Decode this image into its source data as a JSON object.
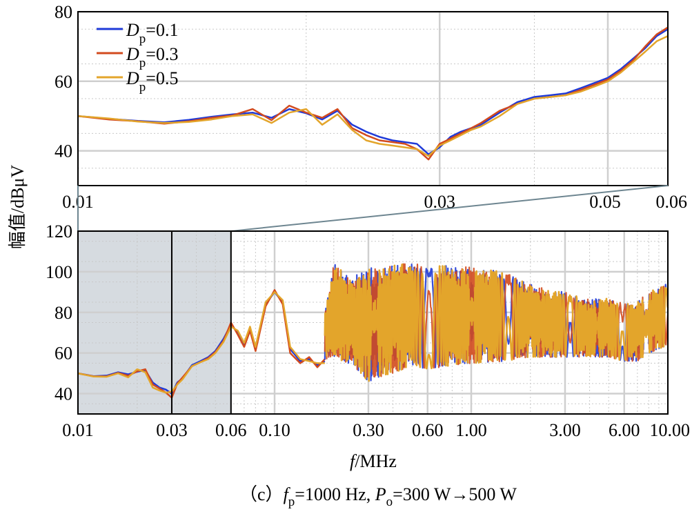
{
  "y_axis_label": "幅值/dBμV",
  "x_axis_label": {
    "italic": "f",
    "rest": "/MHz"
  },
  "caption": {
    "prefix": "（c）",
    "f": "f",
    "f_sub": "p",
    "f_val": "=1000 Hz, ",
    "p": "P",
    "p_sub": "o",
    "p_val": "=300 W",
    "arrow": "→",
    "p_end": "500 W"
  },
  "colors": {
    "Dp=0.1": "#1f3ad8",
    "Dp=0.3": "#d24a1e",
    "Dp=0.5": "#e3a52b",
    "grid": "#cfcfcf",
    "shade": "#d6dbe0",
    "zoom_line": "#6d8590"
  },
  "chart_data": [
    {
      "type": "line",
      "panel": "top-zoom",
      "xscale": "log",
      "xlim": [
        0.01,
        0.06
      ],
      "ylim": [
        30,
        80
      ],
      "xticks": [
        {
          "v": 0.01,
          "label": "0.01"
        },
        {
          "v": 0.03,
          "label": "0.03"
        },
        {
          "v": 0.05,
          "label": "0.05"
        },
        {
          "v": 0.06,
          "label": "0.06"
        }
      ],
      "yticks": [
        {
          "v": 40,
          "label": "40"
        },
        {
          "v": 60,
          "label": "60"
        },
        {
          "v": 80,
          "label": "80"
        }
      ],
      "legend_position": "top-left",
      "legend": [
        {
          "base": "D",
          "sub": "p",
          "value": "=0.1"
        },
        {
          "base": "D",
          "sub": "p",
          "value": "=0.3"
        },
        {
          "base": "D",
          "sub": "p",
          "value": "=0.5"
        }
      ],
      "series": [
        {
          "name": "Dp=0.1",
          "x": [
            0.01,
            0.011,
            0.012,
            0.013,
            0.014,
            0.015,
            0.016,
            0.017,
            0.018,
            0.019,
            0.02,
            0.021,
            0.022,
            0.023,
            0.024,
            0.025,
            0.026,
            0.027,
            0.028,
            0.029,
            0.03,
            0.031,
            0.032,
            0.033,
            0.034,
            0.036,
            0.038,
            0.04,
            0.042,
            0.044,
            0.046,
            0.048,
            0.05,
            0.052,
            0.054,
            0.056,
            0.058,
            0.06
          ],
          "y": [
            50.0,
            49.2,
            48.6,
            48.2,
            48.9,
            49.8,
            50.5,
            51.0,
            49.5,
            52.0,
            50.8,
            49.0,
            51.5,
            47.5,
            45.5,
            44.0,
            43.0,
            42.5,
            42.0,
            39.0,
            41.0,
            44.0,
            45.5,
            46.5,
            47.5,
            51.0,
            54.0,
            55.5,
            56.0,
            56.5,
            58.0,
            59.5,
            61.0,
            63.5,
            66.5,
            69.5,
            73.0,
            75.0
          ]
        },
        {
          "name": "Dp=0.3",
          "x": [
            0.01,
            0.011,
            0.012,
            0.013,
            0.014,
            0.015,
            0.016,
            0.017,
            0.018,
            0.019,
            0.02,
            0.021,
            0.022,
            0.023,
            0.024,
            0.025,
            0.026,
            0.027,
            0.028,
            0.029,
            0.03,
            0.031,
            0.032,
            0.033,
            0.034,
            0.036,
            0.038,
            0.04,
            0.042,
            0.044,
            0.046,
            0.048,
            0.05,
            0.052,
            0.054,
            0.056,
            0.058,
            0.06
          ],
          "y": [
            50.0,
            49.0,
            48.5,
            47.8,
            48.5,
            49.5,
            50.2,
            52.0,
            48.8,
            53.0,
            51.0,
            49.5,
            52.0,
            46.5,
            44.5,
            43.0,
            42.5,
            42.0,
            40.5,
            37.5,
            42.0,
            43.5,
            45.0,
            46.5,
            48.0,
            51.5,
            53.5,
            55.0,
            55.5,
            56.0,
            57.5,
            59.0,
            60.5,
            63.0,
            66.0,
            70.0,
            73.5,
            75.5
          ]
        },
        {
          "name": "Dp=0.5",
          "x": [
            0.01,
            0.011,
            0.012,
            0.013,
            0.014,
            0.015,
            0.016,
            0.017,
            0.018,
            0.019,
            0.02,
            0.021,
            0.022,
            0.023,
            0.024,
            0.025,
            0.026,
            0.027,
            0.028,
            0.029,
            0.03,
            0.031,
            0.032,
            0.033,
            0.034,
            0.036,
            0.038,
            0.04,
            0.042,
            0.044,
            0.046,
            0.048,
            0.05,
            0.052,
            0.054,
            0.056,
            0.058,
            0.06
          ],
          "y": [
            50.0,
            49.3,
            48.4,
            48.0,
            48.3,
            49.0,
            50.0,
            50.5,
            48.0,
            51.0,
            52.0,
            47.5,
            50.5,
            46.0,
            43.0,
            42.0,
            41.5,
            41.0,
            40.5,
            38.5,
            41.5,
            43.0,
            44.5,
            46.0,
            47.0,
            50.0,
            53.5,
            55.0,
            55.5,
            56.0,
            57.0,
            58.5,
            60.0,
            62.5,
            65.5,
            68.5,
            71.5,
            73.0
          ]
        }
      ]
    },
    {
      "type": "line",
      "panel": "bottom-full",
      "xscale": "log",
      "xlim": [
        0.01,
        10.0
      ],
      "ylim": [
        30,
        120
      ],
      "xticks": [
        {
          "v": 0.01,
          "label": "0.01"
        },
        {
          "v": 0.03,
          "label": "0.03"
        },
        {
          "v": 0.06,
          "label": "0.06"
        },
        {
          "v": 0.1,
          "label": "0.10"
        },
        {
          "v": 0.3,
          "label": "0.30"
        },
        {
          "v": 0.6,
          "label": "0.60"
        },
        {
          "v": 1.0,
          "label": "1.00"
        },
        {
          "v": 3.0,
          "label": "3.00"
        },
        {
          "v": 6.0,
          "label": "6.00"
        },
        {
          "v": 10.0,
          "label": "10.00"
        }
      ],
      "yticks": [
        {
          "v": 40,
          "label": "40"
        },
        {
          "v": 60,
          "label": "60"
        },
        {
          "v": 80,
          "label": "80"
        },
        {
          "v": 100,
          "label": "100"
        },
        {
          "v": 120,
          "label": "120"
        }
      ],
      "shaded_range": [
        0.01,
        0.06
      ],
      "marker_lines": [
        0.03,
        0.06
      ],
      "envelope": {
        "x": [
          0.06,
          0.07,
          0.08,
          0.09,
          0.1,
          0.12,
          0.15,
          0.17,
          0.2,
          0.25,
          0.3,
          0.4,
          0.5,
          0.6,
          0.8,
          1.0,
          1.5,
          2.0,
          3.0,
          4.0,
          5.0,
          6.0,
          7.0,
          8.0,
          9.0,
          10.0
        ],
        "upper": [
          76,
          72,
          70,
          88,
          91,
          86,
          70,
          68,
          104,
          98,
          102,
          104,
          105,
          103,
          104,
          103,
          100,
          94,
          90,
          87,
          87,
          85,
          86,
          90,
          93,
          95
        ],
        "lower": [
          70,
          60,
          66,
          58,
          64,
          55,
          49,
          56,
          58,
          54,
          46,
          50,
          54,
          52,
          54,
          55,
          56,
          58,
          58,
          58,
          58,
          56,
          56,
          60,
          62,
          64
        ]
      },
      "series": [
        {
          "name": "Dp=0.1",
          "x": [
            0.01,
            0.012,
            0.014,
            0.016,
            0.018,
            0.02,
            0.022,
            0.024,
            0.026,
            0.028,
            0.03,
            0.032,
            0.034,
            0.038,
            0.042,
            0.046,
            0.05,
            0.055,
            0.06,
            0.065,
            0.07,
            0.075,
            0.08,
            0.09,
            0.1,
            0.11,
            0.12,
            0.135,
            0.15,
            0.165,
            0.18
          ],
          "y": [
            50.0,
            48.6,
            48.9,
            50.5,
            49.5,
            50.8,
            51.5,
            45.5,
            43.0,
            42.0,
            40.0,
            45.5,
            47.5,
            54.0,
            56.0,
            58.0,
            61.0,
            67.0,
            74.0,
            70.0,
            64.0,
            72.0,
            62.0,
            84.0,
            90.0,
            85.0,
            62.0,
            56.0,
            57.0,
            54.0,
            56.0
          ]
        },
        {
          "name": "Dp=0.3",
          "x": [
            0.01,
            0.012,
            0.014,
            0.016,
            0.018,
            0.02,
            0.022,
            0.024,
            0.026,
            0.028,
            0.03,
            0.032,
            0.034,
            0.038,
            0.042,
            0.046,
            0.05,
            0.055,
            0.06,
            0.065,
            0.07,
            0.075,
            0.08,
            0.09,
            0.1,
            0.11,
            0.12,
            0.135,
            0.15,
            0.165,
            0.18
          ],
          "y": [
            50.0,
            48.5,
            48.5,
            50.2,
            48.8,
            51.0,
            52.0,
            44.5,
            42.5,
            40.5,
            38.0,
            45.0,
            48.0,
            53.5,
            55.5,
            57.5,
            60.5,
            66.0,
            75.0,
            69.0,
            63.0,
            71.0,
            61.0,
            83.0,
            91.0,
            84.0,
            60.0,
            55.0,
            58.0,
            53.0,
            57.0
          ]
        },
        {
          "name": "Dp=0.5",
          "x": [
            0.01,
            0.012,
            0.014,
            0.016,
            0.018,
            0.02,
            0.022,
            0.024,
            0.026,
            0.028,
            0.03,
            0.032,
            0.034,
            0.038,
            0.042,
            0.046,
            0.05,
            0.055,
            0.06,
            0.065,
            0.07,
            0.075,
            0.08,
            0.09,
            0.1,
            0.11,
            0.12,
            0.135,
            0.15,
            0.165,
            0.18
          ],
          "y": [
            50.0,
            48.4,
            48.3,
            50.0,
            48.0,
            52.0,
            50.5,
            43.0,
            41.5,
            40.5,
            41.0,
            44.5,
            47.0,
            53.5,
            55.5,
            57.0,
            60.0,
            65.5,
            73.0,
            71.0,
            65.0,
            73.0,
            63.0,
            85.0,
            90.0,
            86.0,
            63.0,
            57.0,
            56.0,
            55.0,
            55.0
          ]
        }
      ]
    }
  ]
}
